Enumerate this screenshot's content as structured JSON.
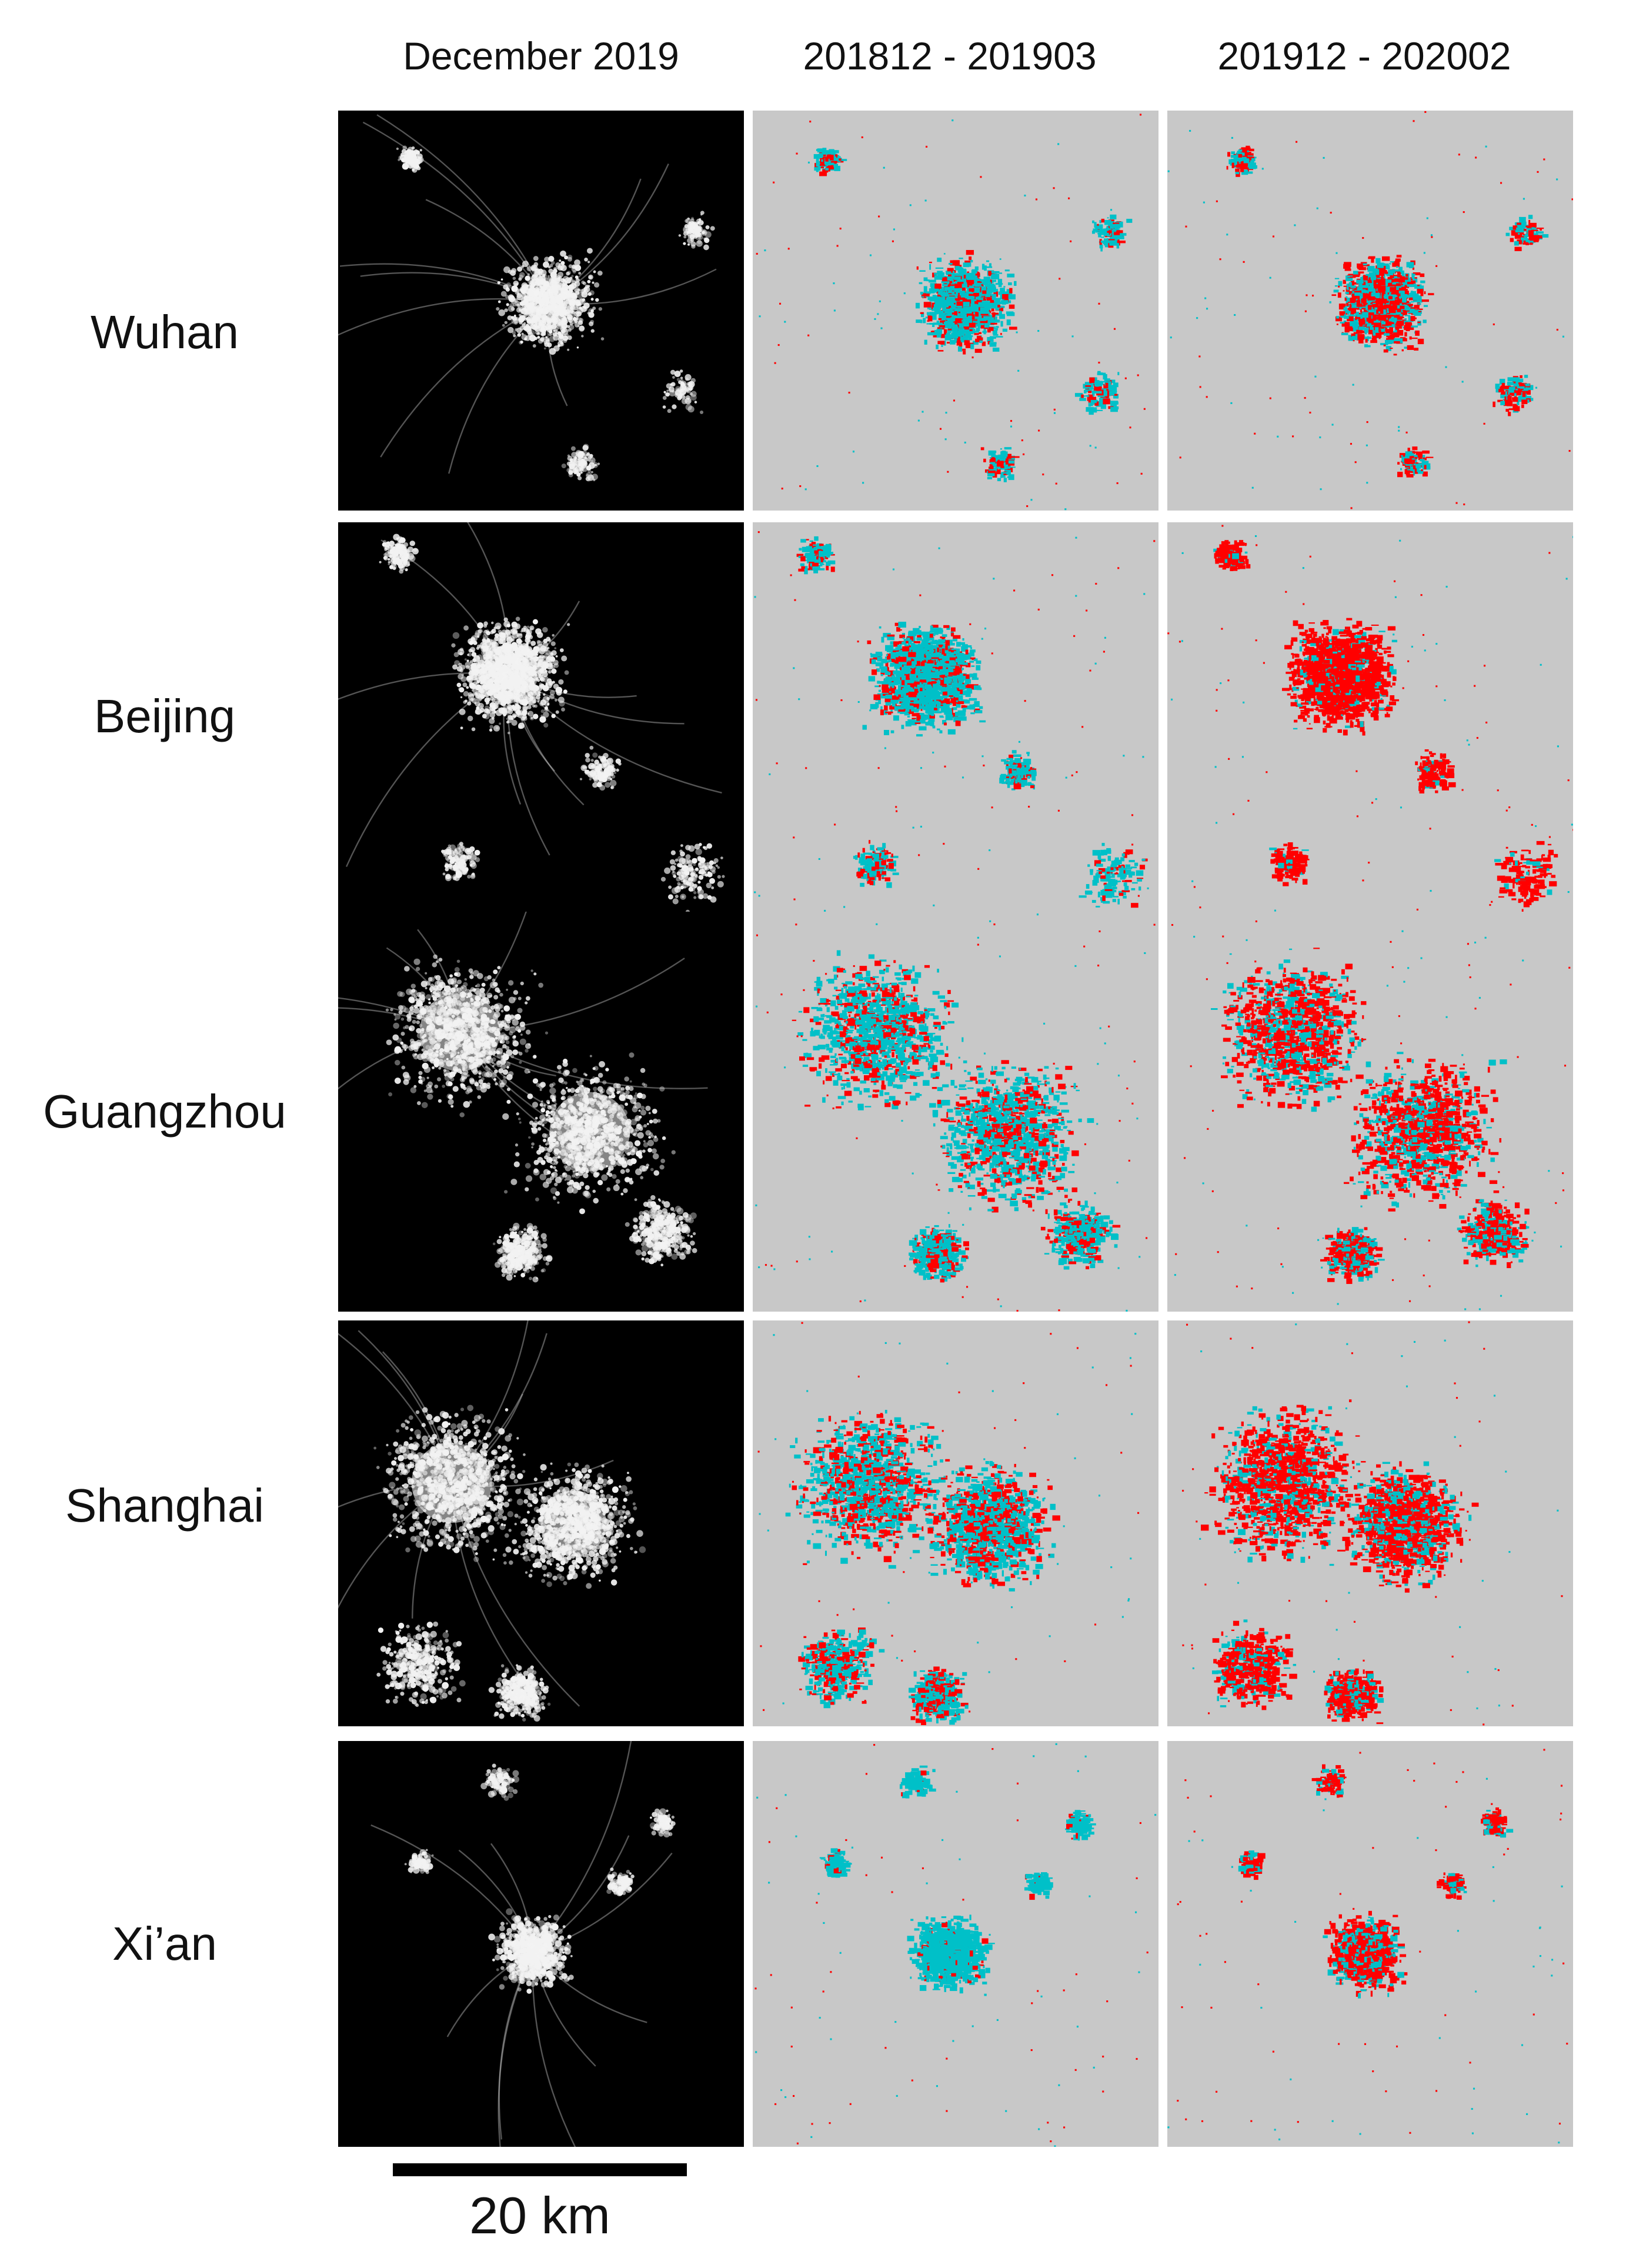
{
  "columns": [
    {
      "label": "December 2019",
      "kind": "night"
    },
    {
      "label": "201812 - 201903",
      "kind": "change"
    },
    {
      "label": "201912 - 202002",
      "kind": "change"
    }
  ],
  "rows": [
    {
      "city": "Wuhan",
      "pattern": "radial",
      "red_share_2019": 0.28,
      "red_share_2020": 0.55
    },
    {
      "city": "Beijing",
      "pattern": "dense-core",
      "red_share_2019": 0.25,
      "red_share_2020": 0.88
    },
    {
      "city": "Guangzhou",
      "pattern": "sprawl",
      "red_share_2019": 0.3,
      "red_share_2020": 0.62
    },
    {
      "city": "Shanghai",
      "pattern": "coastal",
      "red_share_2019": 0.38,
      "red_share_2020": 0.72
    },
    {
      "city": "Xi’an",
      "pattern": "compact",
      "red_share_2019": 0.06,
      "red_share_2020": 0.7
    }
  ],
  "scale": {
    "label": "20 km"
  },
  "colors": {
    "night_bg": "#000000",
    "light": "#f2f2f2",
    "change_bg": "#c8c8c8",
    "increase": "#ff0000",
    "decrease": "#00c0c8"
  }
}
